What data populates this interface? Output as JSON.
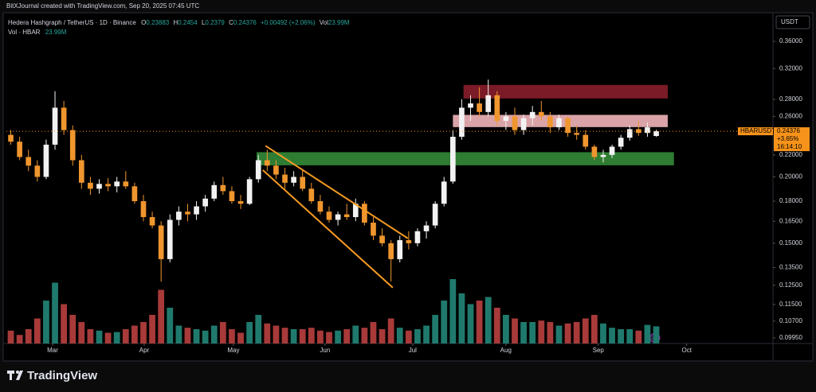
{
  "chart_data": {
    "type": "candlestick",
    "credit": "BitXJournal created with TradingView.com, Sep 20, 2025 07:45 UTC",
    "title": "Hedera Hashgraph / TetherUS · 1D · Binance",
    "ohlc_letters": [
      "O",
      "H",
      "L",
      "C"
    ],
    "change_label": "+0.00492 (+2.06%)",
    "volume_word": "Vol",
    "volume_title": "Vol · HBAR",
    "volume_label": "23.99M",
    "currency": "USDT",
    "symbol": "HBARUSDT",
    "change_pct_label": "+3.65%",
    "countdown": "16:14:10",
    "brand": "TradingView",
    "log_scale": true,
    "grid": false,
    "up_color": "#f2f2f2",
    "down_color": "#f0962e",
    "volume_up_color": "#1f7a6d",
    "volume_down_color": "#a83a3a",
    "price_line_color": "#f7931a",
    "xlim": [
      0,
      86.7
    ],
    "xticks": [
      {
        "value": 5.23,
        "label": "Mar"
      },
      {
        "value": 15.59,
        "label": "Apr"
      },
      {
        "value": 25.68,
        "label": "May"
      },
      {
        "value": 36.04,
        "label": "Jun"
      },
      {
        "value": 45.95,
        "label": "Jul"
      },
      {
        "value": 56.49,
        "label": "Aug"
      },
      {
        "value": 66.94,
        "label": "Sep"
      },
      {
        "value": 76.94,
        "label": "Oct"
      }
    ],
    "ylim": [
      0.0971,
      0.4048
    ],
    "yticks": [
      {
        "value": 0.36,
        "label": "0.36000"
      },
      {
        "value": 0.32,
        "label": "0.32000"
      },
      {
        "value": 0.28,
        "label": "0.28000"
      },
      {
        "value": 0.26,
        "label": "0.26000"
      },
      {
        "value": 0.22,
        "label": "0.22000"
      },
      {
        "value": 0.2,
        "label": "0.20000"
      },
      {
        "value": 0.18,
        "label": "0.18000"
      },
      {
        "value": 0.165,
        "label": "0.16500"
      },
      {
        "value": 0.15,
        "label": "0.15000"
      },
      {
        "value": 0.135,
        "label": "0.13500"
      },
      {
        "value": 0.125,
        "label": "0.12500"
      },
      {
        "value": 0.115,
        "label": "0.11500"
      },
      {
        "value": 0.107,
        "label": "0.10700"
      },
      {
        "value": 0.0995,
        "label": "0.09950"
      }
    ],
    "volume_lim": [
      0,
      100
    ],
    "candles": [
      [
        0.24,
        0.245,
        0.23,
        0.233
      ],
      [
        0.233,
        0.238,
        0.215,
        0.218
      ],
      [
        0.218,
        0.225,
        0.205,
        0.21
      ],
      [
        0.21,
        0.215,
        0.196,
        0.2
      ],
      [
        0.2,
        0.235,
        0.198,
        0.23
      ],
      [
        0.23,
        0.29,
        0.225,
        0.27
      ],
      [
        0.27,
        0.278,
        0.24,
        0.245
      ],
      [
        0.245,
        0.25,
        0.21,
        0.215
      ],
      [
        0.215,
        0.22,
        0.19,
        0.195
      ],
      [
        0.195,
        0.2,
        0.185,
        0.19
      ],
      [
        0.19,
        0.198,
        0.186,
        0.194
      ],
      [
        0.194,
        0.199,
        0.188,
        0.192
      ],
      [
        0.192,
        0.2,
        0.187,
        0.196
      ],
      [
        0.196,
        0.205,
        0.19,
        0.192
      ],
      [
        0.192,
        0.195,
        0.178,
        0.18
      ],
      [
        0.18,
        0.185,
        0.165,
        0.168
      ],
      [
        0.168,
        0.172,
        0.16,
        0.162
      ],
      [
        0.162,
        0.165,
        0.127,
        0.14
      ],
      [
        0.14,
        0.17,
        0.138,
        0.166
      ],
      [
        0.166,
        0.176,
        0.162,
        0.172
      ],
      [
        0.172,
        0.178,
        0.165,
        0.17
      ],
      [
        0.17,
        0.18,
        0.166,
        0.176
      ],
      [
        0.176,
        0.185,
        0.172,
        0.182
      ],
      [
        0.182,
        0.196,
        0.18,
        0.193
      ],
      [
        0.193,
        0.2,
        0.185,
        0.188
      ],
      [
        0.188,
        0.192,
        0.178,
        0.18
      ],
      [
        0.18,
        0.185,
        0.174,
        0.178
      ],
      [
        0.178,
        0.2,
        0.177,
        0.198
      ],
      [
        0.198,
        0.22,
        0.195,
        0.215
      ],
      [
        0.215,
        0.225,
        0.205,
        0.21
      ],
      [
        0.21,
        0.215,
        0.198,
        0.202
      ],
      [
        0.202,
        0.208,
        0.19,
        0.195
      ],
      [
        0.195,
        0.205,
        0.192,
        0.2
      ],
      [
        0.2,
        0.206,
        0.188,
        0.19
      ],
      [
        0.19,
        0.195,
        0.178,
        0.18
      ],
      [
        0.18,
        0.185,
        0.17,
        0.172
      ],
      [
        0.172,
        0.176,
        0.164,
        0.166
      ],
      [
        0.166,
        0.172,
        0.162,
        0.17
      ],
      [
        0.17,
        0.178,
        0.166,
        0.168
      ],
      [
        0.168,
        0.182,
        0.165,
        0.178
      ],
      [
        0.178,
        0.18,
        0.162,
        0.164
      ],
      [
        0.164,
        0.168,
        0.152,
        0.155
      ],
      [
        0.155,
        0.16,
        0.148,
        0.15
      ],
      [
        0.15,
        0.152,
        0.127,
        0.14
      ],
      [
        0.14,
        0.155,
        0.138,
        0.152
      ],
      [
        0.152,
        0.158,
        0.146,
        0.15
      ],
      [
        0.15,
        0.16,
        0.148,
        0.158
      ],
      [
        0.158,
        0.165,
        0.153,
        0.162
      ],
      [
        0.162,
        0.18,
        0.16,
        0.178
      ],
      [
        0.178,
        0.2,
        0.176,
        0.196
      ],
      [
        0.196,
        0.245,
        0.194,
        0.238
      ],
      [
        0.238,
        0.28,
        0.235,
        0.27
      ],
      [
        0.27,
        0.285,
        0.255,
        0.275
      ],
      [
        0.275,
        0.295,
        0.26,
        0.265
      ],
      [
        0.265,
        0.305,
        0.26,
        0.285
      ],
      [
        0.285,
        0.29,
        0.25,
        0.255
      ],
      [
        0.255,
        0.265,
        0.245,
        0.26
      ],
      [
        0.26,
        0.27,
        0.24,
        0.245
      ],
      [
        0.245,
        0.262,
        0.24,
        0.258
      ],
      [
        0.258,
        0.272,
        0.25,
        0.265
      ],
      [
        0.265,
        0.278,
        0.255,
        0.26
      ],
      [
        0.26,
        0.265,
        0.242,
        0.248
      ],
      [
        0.248,
        0.262,
        0.245,
        0.258
      ],
      [
        0.258,
        0.26,
        0.238,
        0.242
      ],
      [
        0.242,
        0.25,
        0.235,
        0.24
      ],
      [
        0.24,
        0.245,
        0.225,
        0.228
      ],
      [
        0.228,
        0.23,
        0.215,
        0.218
      ],
      [
        0.218,
        0.225,
        0.213,
        0.22
      ],
      [
        0.22,
        0.23,
        0.217,
        0.228
      ],
      [
        0.228,
        0.24,
        0.225,
        0.237
      ],
      [
        0.237,
        0.25,
        0.234,
        0.246
      ],
      [
        0.246,
        0.255,
        0.239,
        0.242
      ],
      [
        0.242,
        0.253,
        0.238,
        0.248
      ],
      [
        0.23883,
        0.2454,
        0.2379,
        0.24376
      ]
    ],
    "volumes": [
      18,
      12,
      20,
      35,
      60,
      85,
      55,
      40,
      30,
      20,
      18,
      15,
      16,
      20,
      25,
      30,
      40,
      75,
      50,
      25,
      22,
      20,
      18,
      25,
      30,
      20,
      15,
      30,
      40,
      28,
      25,
      22,
      20,
      20,
      22,
      18,
      16,
      18,
      20,
      25,
      22,
      30,
      20,
      35,
      22,
      18,
      20,
      25,
      40,
      60,
      90,
      70,
      55,
      60,
      65,
      50,
      40,
      35,
      30,
      30,
      32,
      30,
      25,
      28,
      30,
      35,
      40,
      28,
      22,
      20,
      20,
      18,
      26,
      23.99
    ],
    "zones": [
      {
        "low": 0.281,
        "high": 0.298,
        "x0": 51.7,
        "x1": 74.8,
        "color": "#7b1b27"
      },
      {
        "low": 0.2482,
        "high": 0.2617,
        "x0": 50.5,
        "x1": 74.8,
        "color": "#d9a3a8"
      },
      {
        "low": 0.2103,
        "high": 0.2226,
        "x0": 28.3,
        "x1": 75.5,
        "color": "#2e7d32"
      }
    ],
    "trendlines": [
      {
        "x": [
          29.3,
          45.4
        ],
        "y": [
          0.2289,
          0.1532
        ],
        "color": "#f59a23"
      },
      {
        "x": [
          29.0,
          43.7
        ],
        "y": [
          0.206,
          0.1237
        ],
        "color": "#f59a23"
      }
    ]
  }
}
